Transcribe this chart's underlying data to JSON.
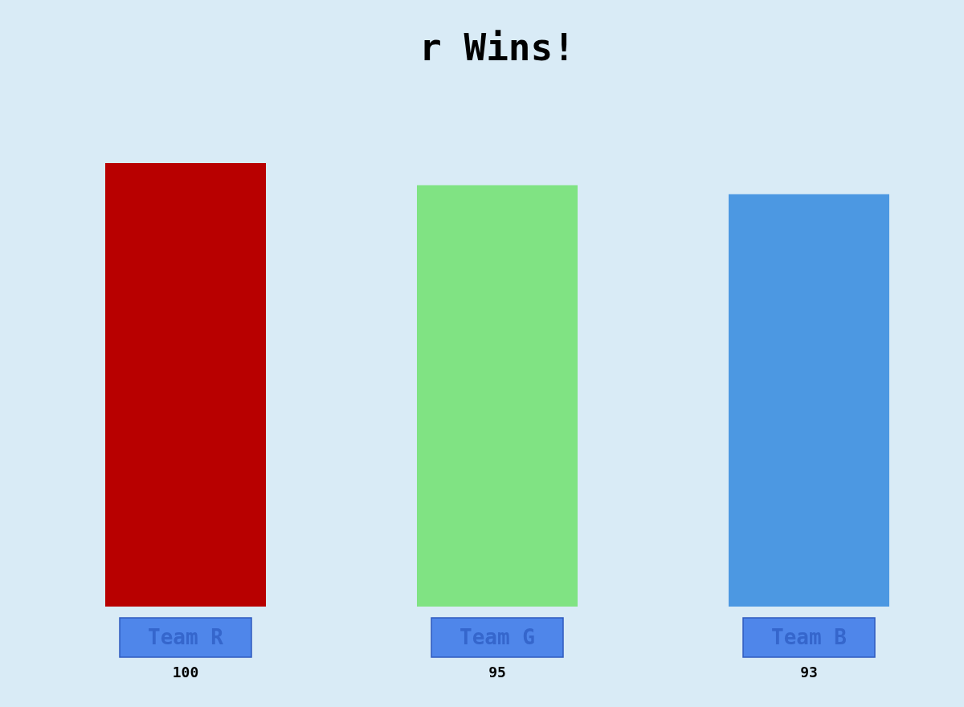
{
  "chart_data": {
    "type": "bar",
    "title": "r Wins!",
    "categories": [
      "Team R",
      "Team G",
      "Team B"
    ],
    "values": [
      100,
      95,
      93
    ],
    "colors": [
      "#b80000",
      "#80e383",
      "#4c98e2"
    ],
    "data_labels": true
  }
}
